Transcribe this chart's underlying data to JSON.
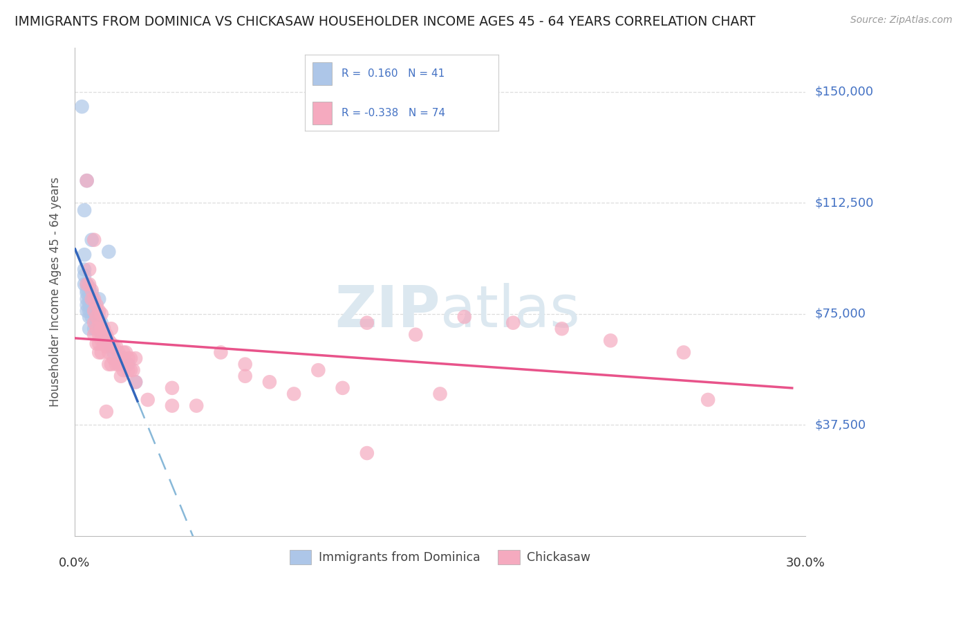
{
  "title": "IMMIGRANTS FROM DOMINICA VS CHICKASAW HOUSEHOLDER INCOME AGES 45 - 64 YEARS CORRELATION CHART",
  "source_text": "Source: ZipAtlas.com",
  "ylabel": "Householder Income Ages 45 - 64 years",
  "xmin": 0.0,
  "xmax": 0.3,
  "yticks_labels": [
    "$37,500",
    "$75,000",
    "$112,500",
    "$150,000"
  ],
  "yticks_values": [
    37500,
    75000,
    112500,
    150000
  ],
  "ymin": 0,
  "ymax": 165000,
  "legend_blue_r": "0.160",
  "legend_blue_n": "41",
  "legend_pink_r": "-0.338",
  "legend_pink_n": "74",
  "blue_color": "#adc6e8",
  "pink_color": "#f5aabf",
  "blue_line_color": "#3366bb",
  "pink_line_color": "#e8538a",
  "blue_dash_color": "#88b8d8",
  "title_color": "#222222",
  "right_label_color": "#4472c4",
  "background_color": "#ffffff",
  "grid_color": "#dddddd",
  "blue_scatter_x": [
    0.003,
    0.005,
    0.004,
    0.007,
    0.004,
    0.004,
    0.004,
    0.004,
    0.005,
    0.005,
    0.005,
    0.005,
    0.005,
    0.005,
    0.006,
    0.006,
    0.006,
    0.006,
    0.006,
    0.006,
    0.006,
    0.007,
    0.007,
    0.007,
    0.007,
    0.008,
    0.008,
    0.008,
    0.009,
    0.009,
    0.01,
    0.01,
    0.011,
    0.011,
    0.013,
    0.014,
    0.015,
    0.016,
    0.02,
    0.022,
    0.025
  ],
  "blue_scatter_y": [
    145000,
    120000,
    110000,
    100000,
    95000,
    90000,
    88000,
    85000,
    85000,
    83000,
    82000,
    80000,
    78000,
    76000,
    84000,
    82000,
    80000,
    78000,
    76000,
    74000,
    70000,
    82000,
    80000,
    78000,
    74000,
    78000,
    75000,
    70000,
    76000,
    72000,
    80000,
    74000,
    72000,
    68000,
    66000,
    96000,
    64000,
    62000,
    60000,
    58000,
    52000
  ],
  "pink_scatter_x": [
    0.005,
    0.008,
    0.005,
    0.006,
    0.006,
    0.007,
    0.007,
    0.008,
    0.008,
    0.008,
    0.008,
    0.009,
    0.009,
    0.009,
    0.009,
    0.01,
    0.01,
    0.01,
    0.01,
    0.01,
    0.011,
    0.011,
    0.011,
    0.011,
    0.012,
    0.012,
    0.013,
    0.013,
    0.013,
    0.014,
    0.014,
    0.014,
    0.015,
    0.015,
    0.015,
    0.016,
    0.016,
    0.017,
    0.017,
    0.018,
    0.018,
    0.019,
    0.019,
    0.02,
    0.02,
    0.021,
    0.022,
    0.022,
    0.023,
    0.023,
    0.024,
    0.025,
    0.025,
    0.03,
    0.04,
    0.04,
    0.05,
    0.06,
    0.07,
    0.07,
    0.08,
    0.09,
    0.1,
    0.11,
    0.12,
    0.12,
    0.14,
    0.15,
    0.16,
    0.18,
    0.2,
    0.22,
    0.25,
    0.26
  ],
  "pink_scatter_y": [
    120000,
    100000,
    85000,
    90000,
    85000,
    83000,
    80000,
    80000,
    76000,
    72000,
    68000,
    78000,
    74000,
    70000,
    65000,
    76000,
    72000,
    68000,
    65000,
    62000,
    75000,
    70000,
    66000,
    62000,
    70000,
    65000,
    68000,
    64000,
    42000,
    66000,
    62000,
    58000,
    70000,
    65000,
    58000,
    64000,
    60000,
    64000,
    58000,
    62000,
    58000,
    58000,
    54000,
    62000,
    56000,
    62000,
    60000,
    56000,
    60000,
    56000,
    56000,
    60000,
    52000,
    46000,
    50000,
    44000,
    44000,
    62000,
    58000,
    54000,
    52000,
    48000,
    56000,
    50000,
    72000,
    28000,
    68000,
    48000,
    74000,
    72000,
    70000,
    66000,
    62000,
    46000
  ]
}
